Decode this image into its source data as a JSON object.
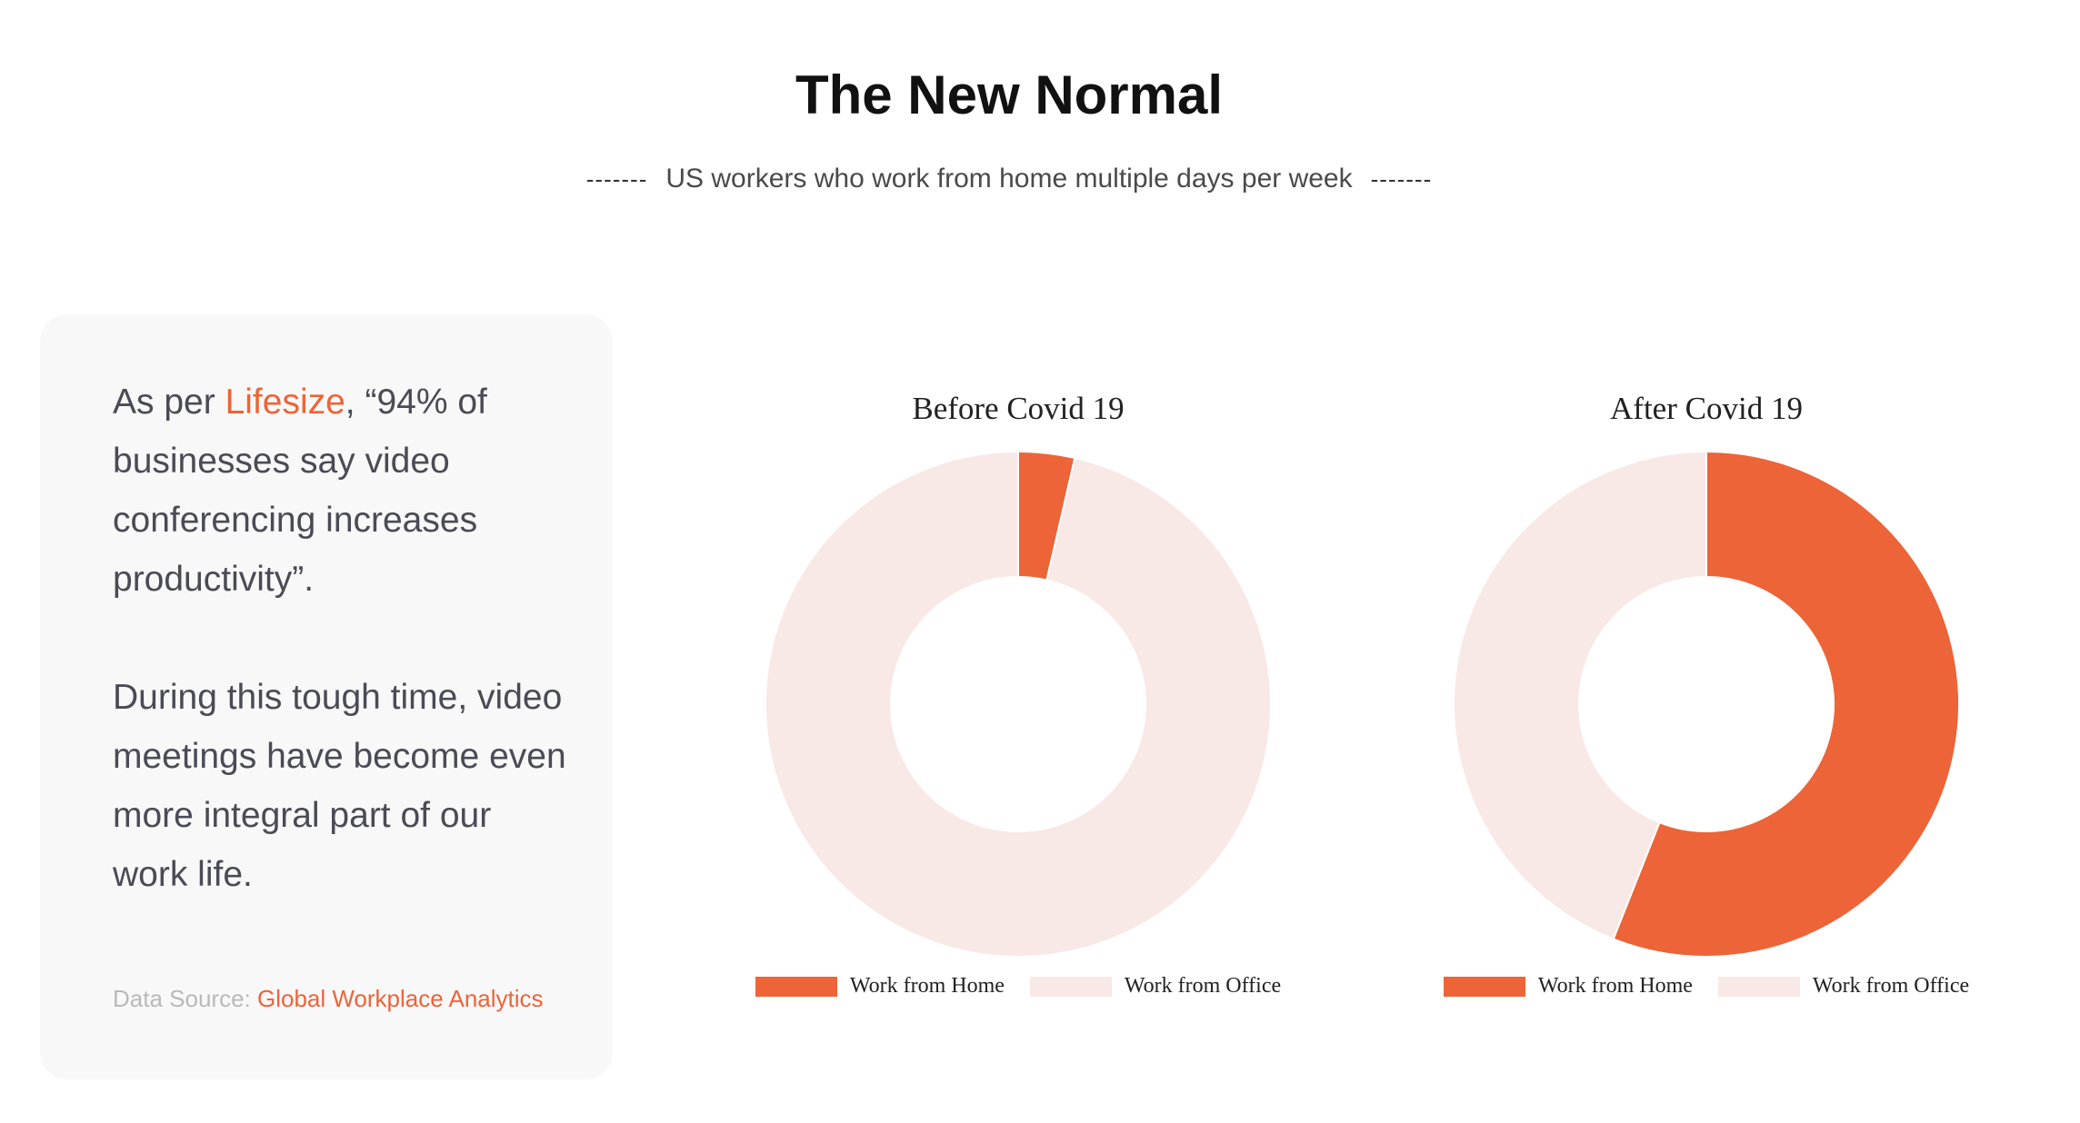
{
  "header": {
    "title": "The New Normal",
    "subtitle": "US workers who work from home multiple days per week",
    "dash_left": "-------",
    "dash_right": "-------"
  },
  "card": {
    "p1_prefix": "As per ",
    "p1_link": "Lifesize",
    "p1_suffix": ", “94% of businesses say video conferencing increases productivity”.",
    "p2": "During this tough time, video meetings have become even more integral part of our work life.",
    "source_label": "Data Source: ",
    "source_link": "Global Workplace Analytics"
  },
  "colors": {
    "home": "#ec6437",
    "office": "#f8e8e6",
    "accent": "#ee6338"
  },
  "chart_data": [
    {
      "type": "pie",
      "title": "Before Covid 19",
      "categories": [
        "Work from Home",
        "Work from Office"
      ],
      "values": [
        3.6,
        96.4
      ],
      "legend": "bottom"
    },
    {
      "type": "pie",
      "title": "After Covid 19",
      "categories": [
        "Work from Home",
        "Work from Office"
      ],
      "values": [
        56,
        44
      ],
      "legend": "bottom"
    }
  ]
}
